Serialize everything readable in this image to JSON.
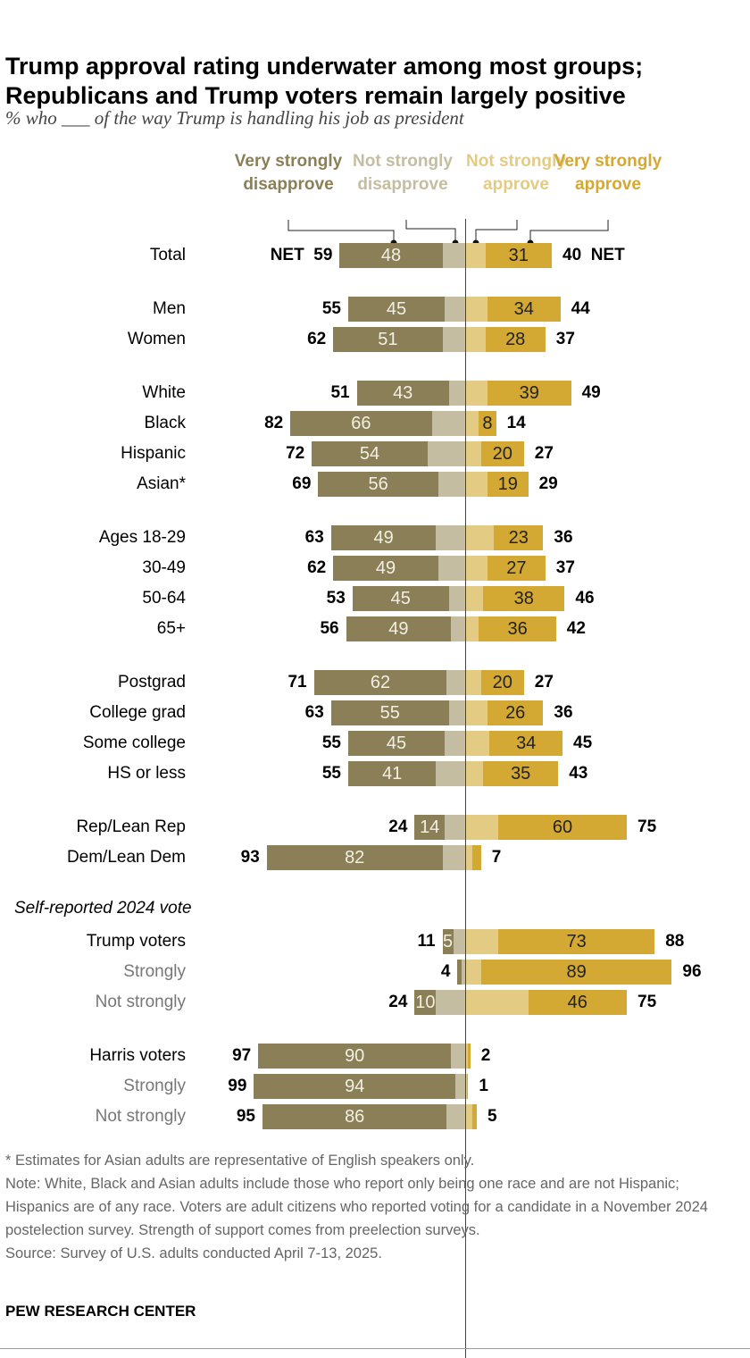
{
  "title": "Trump approval rating underwater among most groups; Republicans and Trump voters remain largely positive",
  "subtitle": "% who ___ of the way Trump is handling his job as president",
  "chart_data": {
    "type": "bar",
    "orientation": "horizontal-diverging",
    "colors": {
      "very_disapprove": "#8b7f57",
      "not_strongly_disapprove": "#c5bda2",
      "not_strongly_approve": "#e4cb84",
      "very_approve": "#d3a833"
    },
    "legend": [
      "Very strongly disapprove",
      "Not strongly disapprove",
      "Not strongly approve",
      "Very strongly approve"
    ],
    "net_label": "NET",
    "section_label": "Self-reported 2024 vote",
    "rows": [
      {
        "label": "Total",
        "disapprove_net": 59,
        "very_disapprove": 48,
        "approve_net": 40,
        "very_approve": 31,
        "net": true
      },
      {
        "label": "Men",
        "disapprove_net": 55,
        "very_disapprove": 45,
        "approve_net": 44,
        "very_approve": 34,
        "gap": true
      },
      {
        "label": "Women",
        "disapprove_net": 62,
        "very_disapprove": 51,
        "approve_net": 37,
        "very_approve": 28
      },
      {
        "label": "White",
        "disapprove_net": 51,
        "very_disapprove": 43,
        "approve_net": 49,
        "very_approve": 39,
        "gap": true
      },
      {
        "label": "Black",
        "disapprove_net": 82,
        "very_disapprove": 66,
        "approve_net": 14,
        "very_approve": 8
      },
      {
        "label": "Hispanic",
        "disapprove_net": 72,
        "very_disapprove": 54,
        "approve_net": 27,
        "very_approve": 20
      },
      {
        "label": "Asian*",
        "disapprove_net": 69,
        "very_disapprove": 56,
        "approve_net": 29,
        "very_approve": 19
      },
      {
        "label": "Ages 18-29",
        "disapprove_net": 63,
        "very_disapprove": 49,
        "approve_net": 36,
        "very_approve": 23,
        "gap": true
      },
      {
        "label": "30-49",
        "disapprove_net": 62,
        "very_disapprove": 49,
        "approve_net": 37,
        "very_approve": 27
      },
      {
        "label": "50-64",
        "disapprove_net": 53,
        "very_disapprove": 45,
        "approve_net": 46,
        "very_approve": 38
      },
      {
        "label": "65+",
        "disapprove_net": 56,
        "very_disapprove": 49,
        "approve_net": 42,
        "very_approve": 36
      },
      {
        "label": "Postgrad",
        "disapprove_net": 71,
        "very_disapprove": 62,
        "approve_net": 27,
        "very_approve": 20,
        "gap": true
      },
      {
        "label": "College grad",
        "disapprove_net": 63,
        "very_disapprove": 55,
        "approve_net": 36,
        "very_approve": 26
      },
      {
        "label": "Some college",
        "disapprove_net": 55,
        "very_disapprove": 45,
        "approve_net": 45,
        "very_approve": 34
      },
      {
        "label": "HS or less",
        "disapprove_net": 55,
        "very_disapprove": 41,
        "approve_net": 43,
        "very_approve": 35
      },
      {
        "label": "Rep/Lean Rep",
        "disapprove_net": 24,
        "very_disapprove": 14,
        "approve_net": 75,
        "very_approve": 60,
        "gap": true
      },
      {
        "label": "Dem/Lean Dem",
        "disapprove_net": 93,
        "very_disapprove": 82,
        "approve_net": 7,
        "very_approve": 4
      },
      {
        "label": "Trump voters",
        "disapprove_net": 11,
        "very_disapprove": 5,
        "approve_net": 88,
        "very_approve": 73,
        "gap": true,
        "section": true
      },
      {
        "label": "Strongly",
        "disapprove_net": 4,
        "very_disapprove": 2,
        "approve_net": 96,
        "very_approve": 89,
        "sub": true
      },
      {
        "label": "Not strongly",
        "disapprove_net": 24,
        "very_disapprove": 10,
        "approve_net": 75,
        "very_approve": 46,
        "sub": true
      },
      {
        "label": "Harris voters",
        "disapprove_net": 97,
        "very_disapprove": 90,
        "approve_net": 2,
        "very_approve": 1,
        "gap": true
      },
      {
        "label": "Strongly",
        "disapprove_net": 99,
        "very_disapprove": 94,
        "approve_net": 1,
        "very_approve": 0.5,
        "sub": true
      },
      {
        "label": "Not strongly",
        "disapprove_net": 95,
        "very_disapprove": 86,
        "approve_net": 5,
        "very_approve": 2,
        "sub": true
      }
    ]
  },
  "notes": [
    "* Estimates for Asian adults are representative of English speakers only.",
    "Note: White, Black and Asian adults include those who report only being one race and are not Hispanic; Hispanics are of any race. Voters are adult citizens who reported voting for a candidate in a November 2024 postelection survey. Strength of support comes from preelection surveys.",
    "Source: Survey of U.S. adults conducted April 7-13, 2025."
  ],
  "brand": "PEW RESEARCH CENTER"
}
